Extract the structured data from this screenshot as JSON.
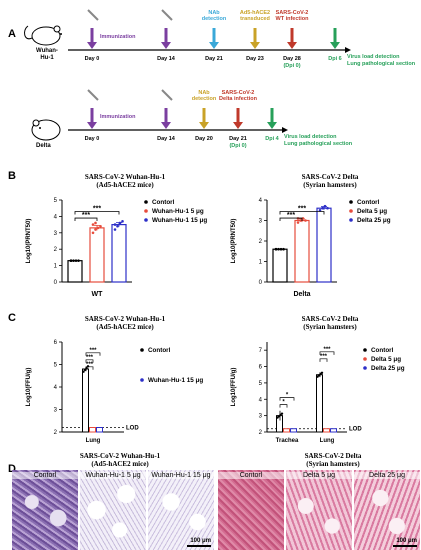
{
  "panels": {
    "A": "A",
    "B": "B",
    "C": "C",
    "D": "D"
  },
  "timeline1": {
    "strain_label": "Wuhan-\nHu-1",
    "events": [
      {
        "day": "Day 0",
        "above": "Immunization",
        "color": "#7b3fa0",
        "arrow": "#7b3fa0",
        "below2": ""
      },
      {
        "day": "Day 14",
        "above": "",
        "color": "#7b3fa0",
        "arrow": "#7b3fa0",
        "below2": ""
      },
      {
        "day": "Day 21",
        "above": "NAb\ndetection",
        "color": "#3aa8d8",
        "arrow": "#3aa8d8",
        "below2": ""
      },
      {
        "day": "Day 23",
        "above": "Ad5-hACE2\ntransduced",
        "color": "#c9a227",
        "arrow": "#c9a227",
        "below2": ""
      },
      {
        "day": "Day 28",
        "above": "SARS-CoV-2\nWT infection",
        "color": "#c0392b",
        "arrow": "#c0392b",
        "below2": "(Dpi 0)"
      },
      {
        "day": "Dpi 6",
        "above": "",
        "color": "#27a05a",
        "arrow": "#27a05a",
        "below2": ""
      }
    ],
    "outcome": "Virus load detection\nLung pathological section"
  },
  "timeline2": {
    "strain_label": "Delta",
    "events": [
      {
        "day": "Day 0",
        "above": "Immunization",
        "color": "#7b3fa0",
        "arrow": "#7b3fa0",
        "below2": ""
      },
      {
        "day": "Day 14",
        "above": "",
        "color": "#7b3fa0",
        "arrow": "#7b3fa0",
        "below2": ""
      },
      {
        "day": "Day 20",
        "above": "NAb\ndetection",
        "color": "#c9a227",
        "arrow": "#c9a227",
        "below2": ""
      },
      {
        "day": "Day 21",
        "above": "SARS-CoV-2\nDelta infection",
        "color": "#c0392b",
        "arrow": "#c0392b",
        "below2": "(Dpi 0)"
      },
      {
        "day": "Dpi 4",
        "above": "",
        "color": "#27a05a",
        "arrow": "#27a05a",
        "below2": ""
      }
    ],
    "outcome": "Virus load detection\nLung pathological section"
  },
  "B_left": {
    "title": "SARS-CoV-2 Wuhan-Hu-1",
    "subtitle": "(Ad5-hACE2 mice)"
  },
  "B_right": {
    "title": "SARS-CoV-2 Delta",
    "subtitle": "(Syrian hamsters)"
  },
  "C_left": {
    "title": "SARS-CoV-2 Wuhan-Hu-1",
    "subtitle": "(Ad5-hACE2 mice)"
  },
  "C_right": {
    "title": "SARS-CoV-2 Delta",
    "subtitle": "(Syrian hamsters)"
  },
  "D_left": {
    "title": "SARS-CoV-2 Wuhan-Hu-1",
    "subtitle": "(Ad5-hACE2 mice)"
  },
  "D_right": {
    "title": "SARS-CoV-2 Delta",
    "subtitle": "(Syrian hamsters)"
  },
  "histology": {
    "labels": [
      "Contorl",
      "Wuhan-Hu-1 5 μg",
      "Wuhan-Hu-1 15 μg",
      "Contorl",
      "Delta 5 μg",
      "Delta 25 μg"
    ],
    "scalebar": "100 μm"
  },
  "chart_data": [
    {
      "type": "bar",
      "panel": "B-left",
      "ylabel": "Log10(PRNT50)",
      "xlabel": "WT",
      "ylim": [
        0,
        5
      ],
      "yticks": [
        "0",
        "1",
        "2",
        "3",
        "4",
        "5"
      ],
      "series": [
        {
          "name": "Contorl",
          "value": 1.3,
          "err": 0.0,
          "color": "#000000",
          "points": [
            1.3,
            1.3,
            1.3,
            1.3,
            1.3
          ]
        },
        {
          "name": "Wuhan-Hu-1 5 μg",
          "value": 3.3,
          "err": 0.15,
          "color": "#e74c3c",
          "points": [
            3.0,
            3.2,
            3.3,
            3.4,
            3.5,
            3.6
          ]
        },
        {
          "name": "Wuhan-Hu-1 15 μg",
          "value": 3.5,
          "err": 0.12,
          "color": "#2d2fc8",
          "points": [
            3.2,
            3.4,
            3.6,
            3.7,
            3.5
          ]
        }
      ],
      "significance": [
        "***",
        "***"
      ]
    },
    {
      "type": "bar",
      "panel": "B-right",
      "ylabel": "Log10(PRNT50)",
      "xlabel": "Delta",
      "ylim": [
        0,
        4
      ],
      "yticks": [
        "0",
        "1",
        "2",
        "3",
        "4"
      ],
      "series": [
        {
          "name": "Contorl",
          "value": 1.6,
          "err": 0.0,
          "color": "#000000",
          "points": [
            1.6,
            1.6,
            1.6,
            1.6,
            1.6
          ]
        },
        {
          "name": "Delta 5 μg",
          "value": 3.0,
          "err": 0.08,
          "color": "#e74c3c",
          "points": [
            2.9,
            3.0,
            3.1,
            3.0,
            3.1
          ]
        },
        {
          "name": "Delta 25 μg",
          "value": 3.6,
          "err": 0.08,
          "color": "#2d2fc8",
          "points": [
            3.5,
            3.6,
            3.7,
            3.6
          ]
        }
      ],
      "significance": [
        "***",
        "***"
      ]
    },
    {
      "type": "bar",
      "panel": "C-left",
      "ylabel": "Log10(FFU/g)",
      "categories": [
        "Lung"
      ],
      "ylim": [
        2,
        6
      ],
      "yticks": [
        "2",
        "3",
        "4",
        "5",
        "6"
      ],
      "lod": 2.2,
      "lod_label": "LOD",
      "series": [
        {
          "name": "Contorl",
          "values": [
            4.8
          ],
          "err": [
            0.1
          ],
          "color": "#000000"
        },
        {
          "name": "Wuhan-Hu-1 15 μg",
          "values": [
            2.2
          ],
          "err": [
            0
          ],
          "color": "#2d2fc8"
        }
      ],
      "extra_bar": {
        "values": [
          2.2
        ],
        "color": "#e74c3c"
      },
      "significance": [
        "***",
        "***",
        "***"
      ]
    },
    {
      "type": "bar",
      "panel": "C-right",
      "ylabel": "Log10(FFU/g)",
      "categories": [
        "Trachea",
        "Lung"
      ],
      "ylim": [
        2,
        7.5
      ],
      "yticks": [
        "2",
        "3",
        "4",
        "5",
        "6",
        "7"
      ],
      "lod": 2.2,
      "lod_label": "LOD",
      "series": [
        {
          "name": "Contorl",
          "values": [
            3.0,
            5.5
          ],
          "err": [
            0.3,
            0.15
          ],
          "color": "#000000"
        },
        {
          "name": "Delta 5 μg",
          "values": [
            2.2,
            2.2
          ],
          "err": [
            0,
            0
          ],
          "color": "#e74c3c"
        },
        {
          "name": "Delta 25 μg",
          "values": [
            2.2,
            2.2
          ],
          "err": [
            0,
            0
          ],
          "color": "#2d2fc8"
        }
      ],
      "significance": [
        "*",
        "*",
        "***",
        "***"
      ]
    }
  ]
}
